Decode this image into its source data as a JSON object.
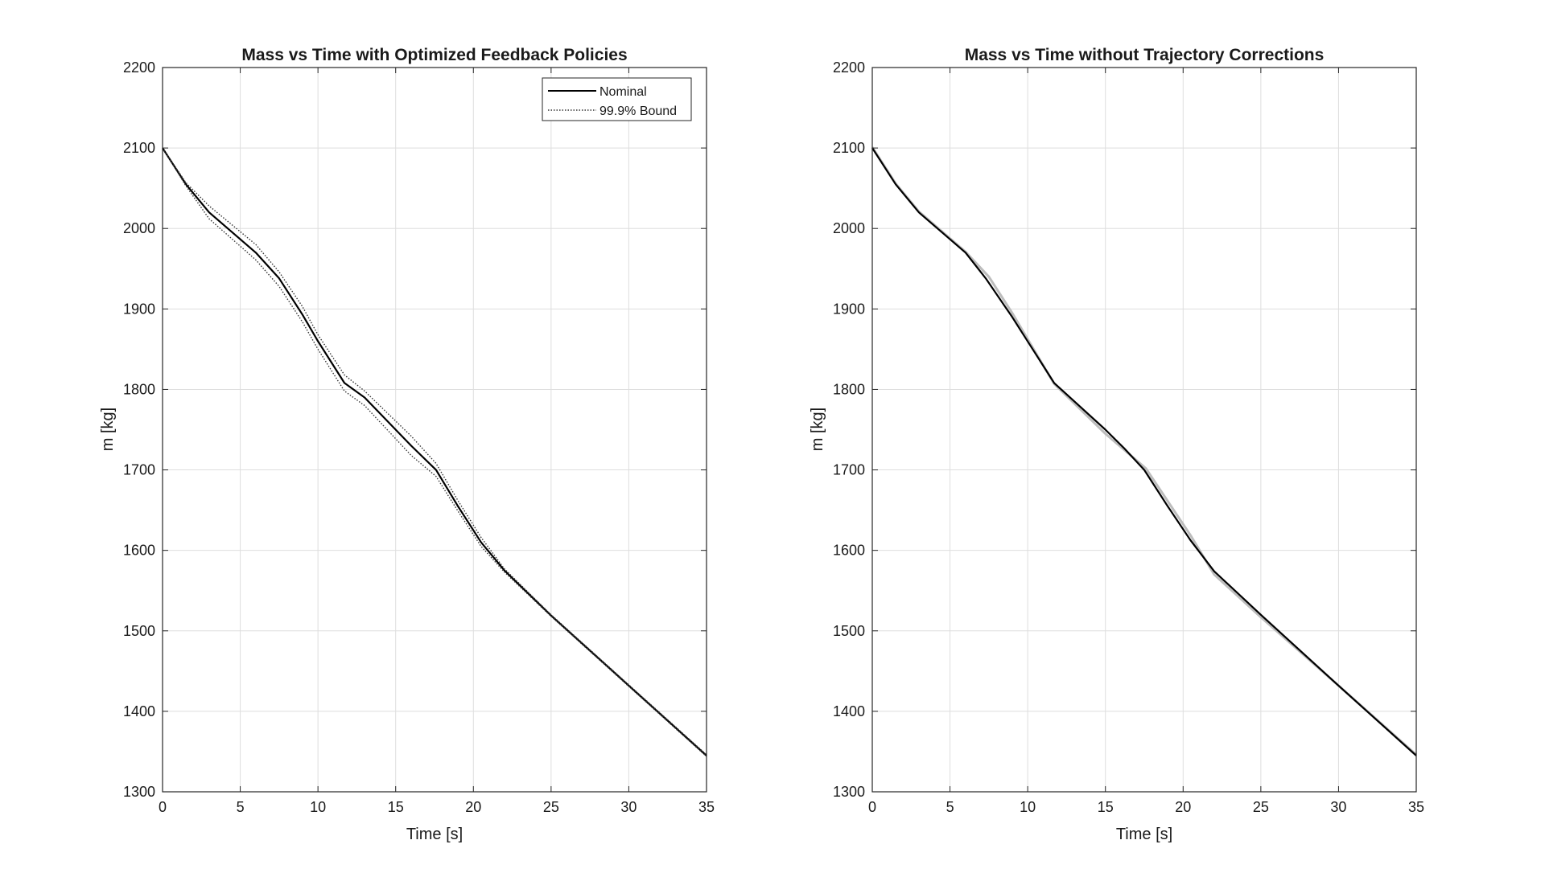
{
  "chart_data": [
    {
      "type": "line",
      "title": "Mass vs Time with Optimized Feedback Policies",
      "xlabel": "Time [s]",
      "ylabel": "m [kg]",
      "xlim": [
        0,
        35
      ],
      "ylim": [
        1300,
        2200
      ],
      "xticks": [
        "0",
        "5",
        "10",
        "15",
        "20",
        "25",
        "30",
        "35"
      ],
      "yticks": [
        "1300",
        "1400",
        "1500",
        "1600",
        "1700",
        "1800",
        "1900",
        "2000",
        "2100",
        "2200"
      ],
      "grid": true,
      "legend": "top-right",
      "series": [
        {
          "name": "Nominal",
          "style": "solid",
          "x": [
            0,
            1.5,
            3,
            6,
            7.5,
            9,
            10,
            11.7,
            13,
            16,
            17.6,
            19,
            20.5,
            22,
            25,
            30,
            35
          ],
          "y": [
            2100,
            2055,
            2020,
            1970,
            1938,
            1893,
            1860,
            1808,
            1790,
            1730,
            1700,
            1655,
            1610,
            1575,
            1519,
            1432,
            1345
          ]
        },
        {
          "name": "99.9% Bound",
          "style": "dotted",
          "x": [
            0,
            1.5,
            3,
            6,
            7.5,
            9,
            10,
            11.7,
            13,
            16,
            17.6,
            19,
            20.5,
            22,
            25,
            30,
            35
          ],
          "y": [
            2100,
            2057,
            2028,
            1980,
            1946,
            1903,
            1868,
            1818,
            1798,
            1742,
            1708,
            1662,
            1616,
            1577,
            1520,
            1433,
            1346
          ]
        },
        {
          "name": "",
          "style": "dotted",
          "x": [
            0,
            1.5,
            3,
            6,
            7.5,
            9,
            10,
            11.7,
            13,
            16,
            17.6,
            19,
            20.5,
            22,
            25,
            30,
            35
          ],
          "y": [
            2100,
            2053,
            2012,
            1961,
            1928,
            1884,
            1850,
            1798,
            1780,
            1718,
            1692,
            1649,
            1605,
            1573,
            1518,
            1431,
            1344
          ]
        }
      ]
    },
    {
      "type": "line",
      "title": "Mass vs Time without Trajectory Corrections",
      "xlabel": "Time [s]",
      "ylabel": "m [kg]",
      "xlim": [
        0,
        35
      ],
      "ylim": [
        1300,
        2200
      ],
      "xticks": [
        "0",
        "5",
        "10",
        "15",
        "20",
        "25",
        "30",
        "35"
      ],
      "yticks": [
        "1300",
        "1400",
        "1500",
        "1600",
        "1700",
        "1800",
        "1900",
        "2000",
        "2100",
        "2200"
      ],
      "grid": true,
      "series": [
        {
          "name": "",
          "style": "solid-light",
          "x": [
            0,
            1.5,
            3,
            6,
            7.5,
            9,
            11.7,
            15,
            17.6,
            20.5,
            22,
            25,
            30,
            35
          ],
          "y": [
            2101,
            2056,
            2021,
            1971,
            1940,
            1895,
            1807,
            1745,
            1702,
            1618,
            1570,
            1517,
            1432,
            1346
          ]
        },
        {
          "name": "",
          "style": "solid",
          "x": [
            0,
            1.5,
            3,
            6,
            7.3,
            9,
            11.7,
            15,
            16.2,
            17.5,
            19,
            20.5,
            22,
            25,
            30,
            35
          ],
          "y": [
            2100,
            2055,
            2020,
            1970,
            1938,
            1890,
            1808,
            1750,
            1727,
            1700,
            1655,
            1612,
            1574,
            1520,
            1432,
            1345
          ]
        }
      ]
    }
  ]
}
